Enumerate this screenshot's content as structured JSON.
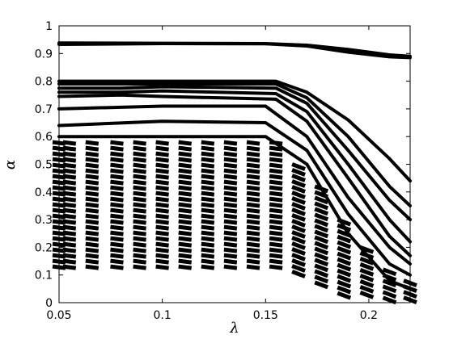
{
  "chart_data": {
    "type": "line",
    "title": "",
    "xlabel": "λ",
    "ylabel": "α",
    "xlim": [
      0.05,
      0.22
    ],
    "ylim": [
      0,
      1
    ],
    "xticks": [
      0.05,
      0.1,
      0.15,
      0.2
    ],
    "xtick_labels": [
      "0.05",
      "0.1",
      "0.15",
      "0.2"
    ],
    "yticks": [
      0,
      0.1,
      0.2,
      0.3,
      0.4,
      0.5,
      0.6,
      0.7,
      0.8,
      0.9,
      1
    ],
    "ytick_labels": [
      "0",
      "0.1",
      "0.2",
      "0.3",
      "0.4",
      "0.5",
      "0.6",
      "0.7",
      "0.8",
      "0.9",
      "1"
    ],
    "grid": false,
    "legend": "none",
    "line_color": "#000000",
    "solid_series": [
      {
        "x": [
          0.05,
          0.1,
          0.15,
          0.17,
          0.19,
          0.21,
          0.22
        ],
        "y": [
          0.938,
          0.937,
          0.936,
          0.93,
          0.915,
          0.895,
          0.89
        ]
      },
      {
        "x": [
          0.05,
          0.1,
          0.15,
          0.17,
          0.19,
          0.21,
          0.22
        ],
        "y": [
          0.933,
          0.936,
          0.935,
          0.927,
          0.905,
          0.888,
          0.885
        ]
      },
      {
        "x": [
          0.05,
          0.1,
          0.155,
          0.17,
          0.19,
          0.21,
          0.22
        ],
        "y": [
          0.8,
          0.8,
          0.8,
          0.76,
          0.66,
          0.52,
          0.44
        ]
      },
      {
        "x": [
          0.05,
          0.1,
          0.155,
          0.17,
          0.19,
          0.21,
          0.22
        ],
        "y": [
          0.79,
          0.79,
          0.79,
          0.74,
          0.6,
          0.42,
          0.35
        ]
      },
      {
        "x": [
          0.05,
          0.08,
          0.1,
          0.155,
          0.17,
          0.19,
          0.21,
          0.22
        ],
        "y": [
          0.775,
          0.775,
          0.78,
          0.775,
          0.72,
          0.55,
          0.37,
          0.3
        ]
      },
      {
        "x": [
          0.05,
          0.08,
          0.1,
          0.155,
          0.17,
          0.19,
          0.21,
          0.22
        ],
        "y": [
          0.76,
          0.76,
          0.765,
          0.755,
          0.69,
          0.5,
          0.3,
          0.22
        ]
      },
      {
        "x": [
          0.05,
          0.08,
          0.1,
          0.155,
          0.17,
          0.19,
          0.21,
          0.22
        ],
        "y": [
          0.745,
          0.75,
          0.745,
          0.735,
          0.655,
          0.45,
          0.24,
          0.17
        ]
      },
      {
        "x": [
          0.05,
          0.1,
          0.15,
          0.17,
          0.19,
          0.21,
          0.22
        ],
        "y": [
          0.7,
          0.71,
          0.71,
          0.6,
          0.38,
          0.2,
          0.14
        ]
      },
      {
        "x": [
          0.05,
          0.1,
          0.15,
          0.17,
          0.19,
          0.21,
          0.22
        ],
        "y": [
          0.64,
          0.655,
          0.65,
          0.55,
          0.32,
          0.14,
          0.1
        ]
      },
      {
        "x": [
          0.05,
          0.1,
          0.15,
          0.17,
          0.19,
          0.21,
          0.22
        ],
        "y": [
          0.6,
          0.6,
          0.6,
          0.5,
          0.25,
          0.08,
          0.05
        ]
      }
    ],
    "dashed_band": {
      "x_columns": [
        0.05,
        0.055,
        0.066,
        0.078,
        0.089,
        0.1,
        0.111,
        0.122,
        0.133,
        0.144,
        0.155,
        0.166,
        0.177,
        0.188,
        0.199,
        0.21,
        0.22
      ],
      "y_min": [
        0.12,
        0.12,
        0.12,
        0.12,
        0.12,
        0.12,
        0.12,
        0.12,
        0.12,
        0.12,
        0.12,
        0.1,
        0.06,
        0.03,
        0.02,
        0.01,
        0.0
      ],
      "y_max": [
        0.58,
        0.58,
        0.58,
        0.58,
        0.58,
        0.58,
        0.58,
        0.58,
        0.58,
        0.58,
        0.58,
        0.5,
        0.42,
        0.3,
        0.2,
        0.12,
        0.08
      ]
    }
  }
}
